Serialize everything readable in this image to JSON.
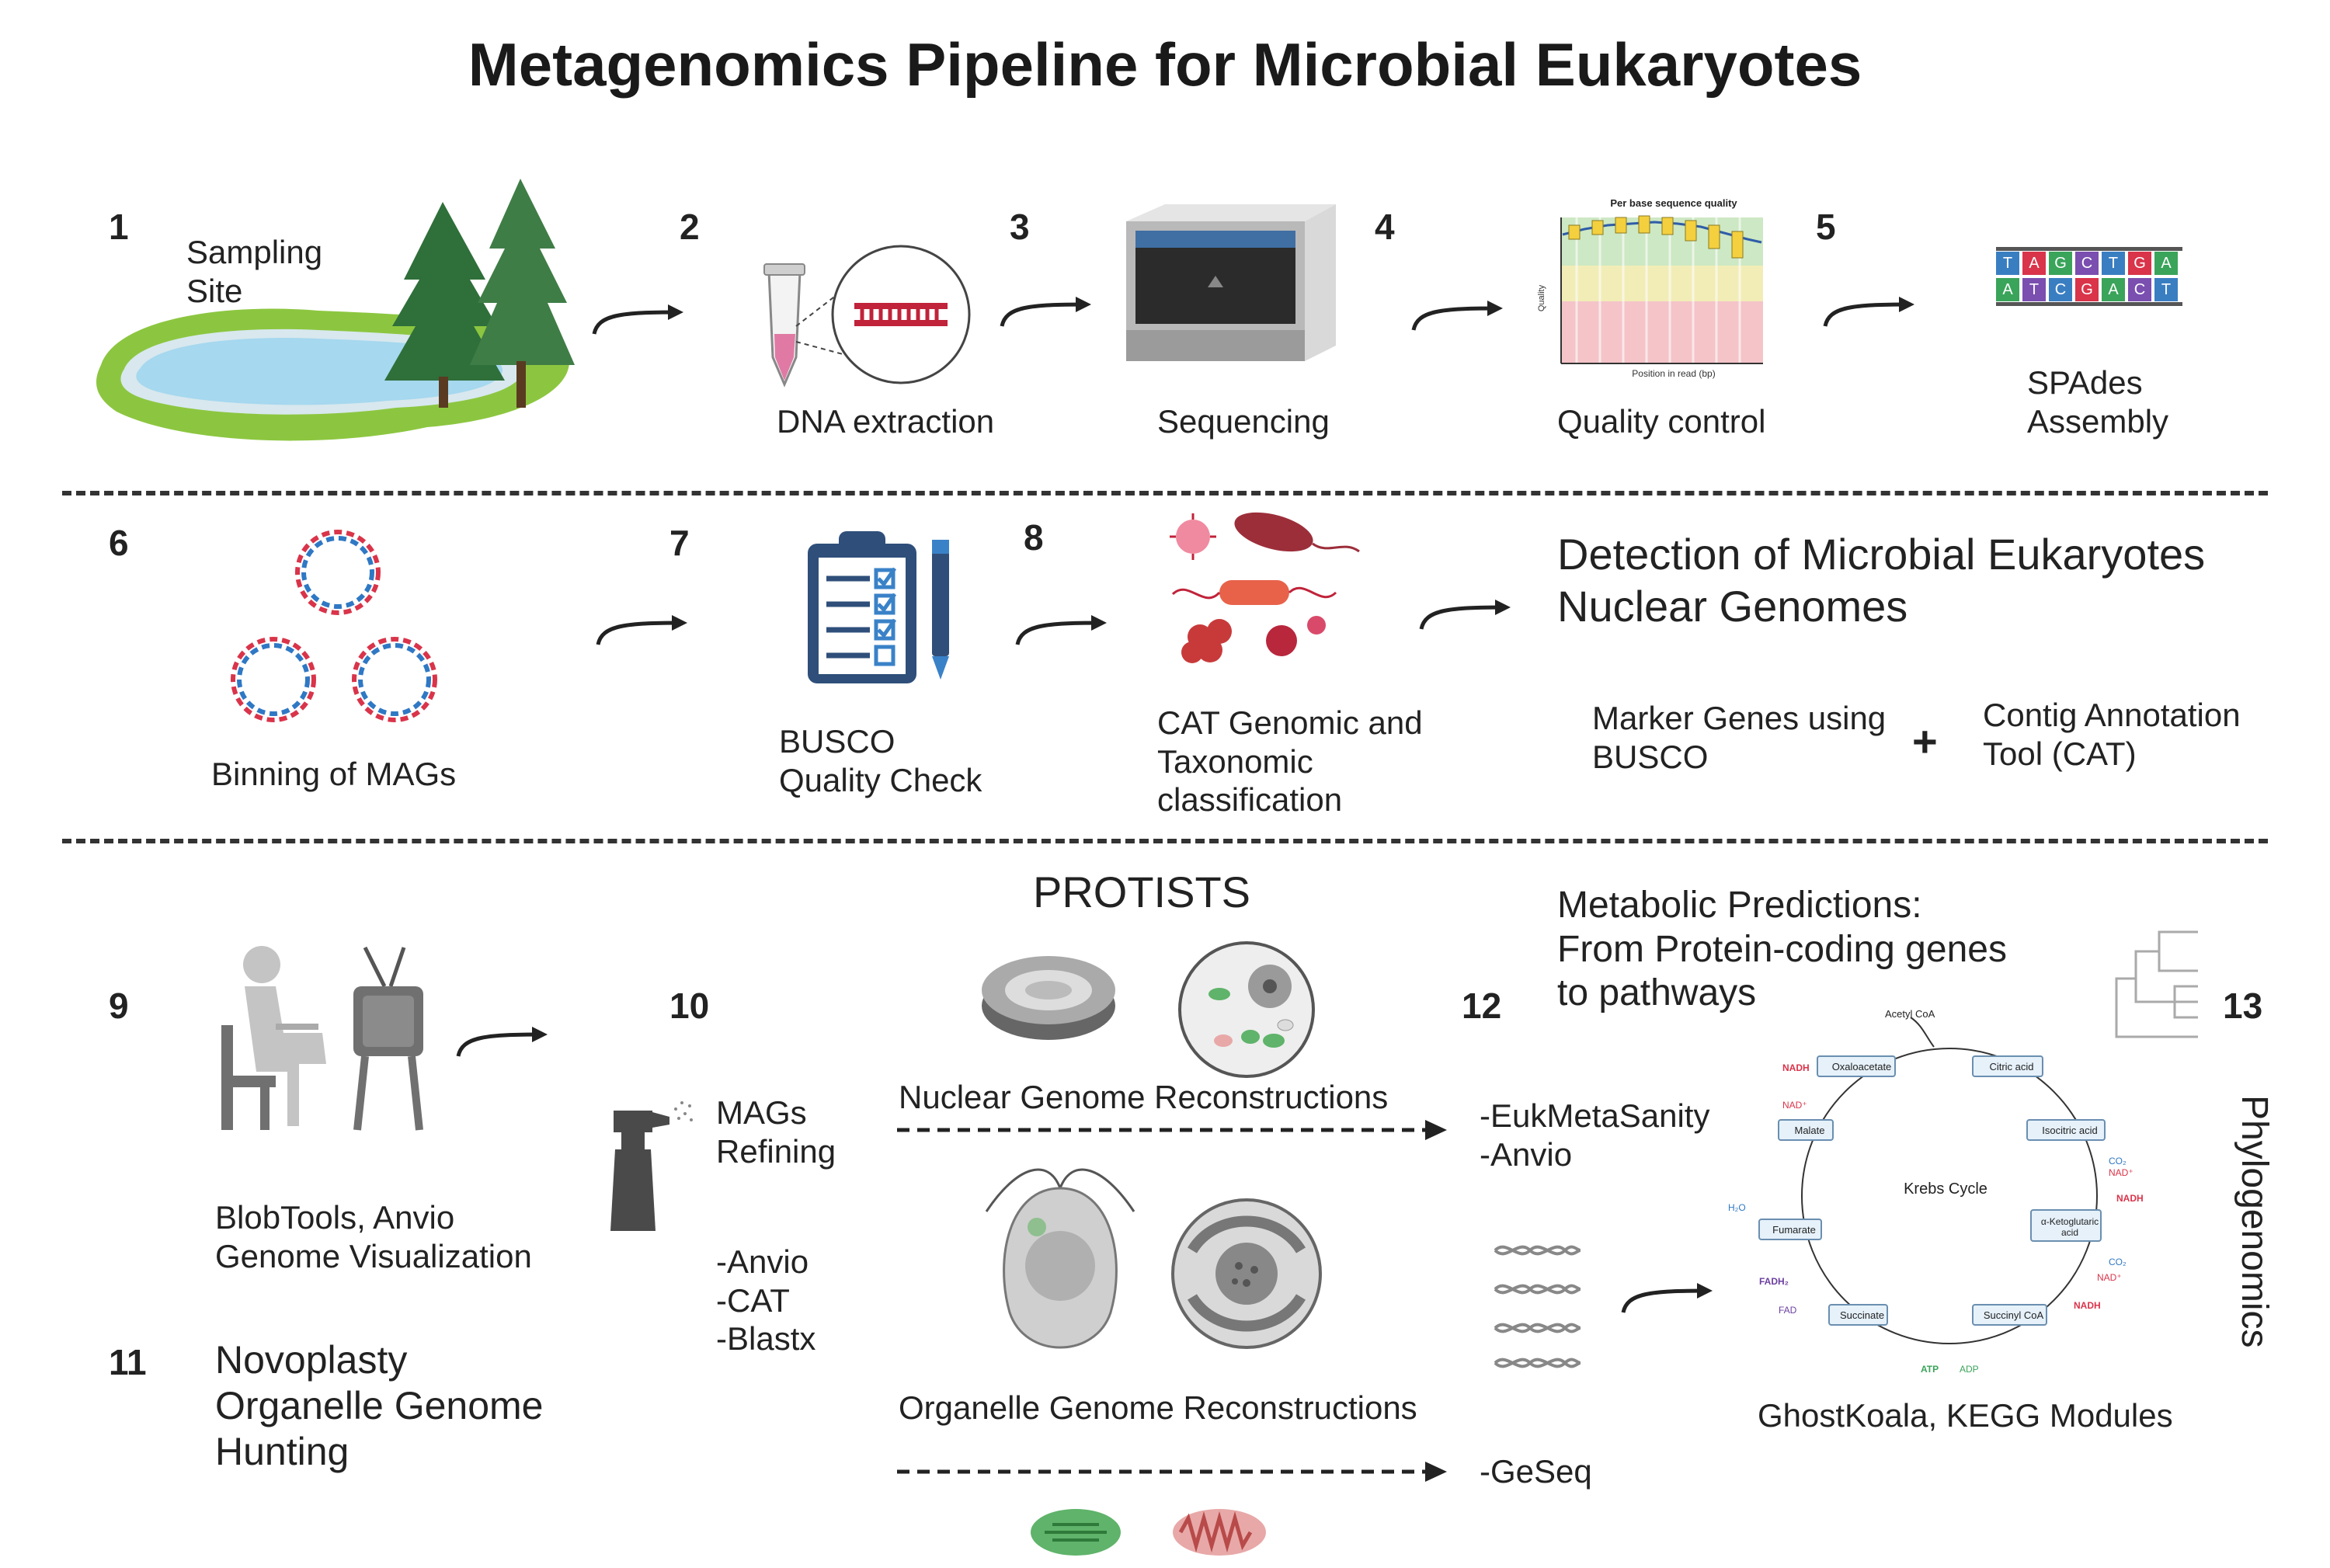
{
  "title": "Metagenomics Pipeline for Microbial Eukaryotes",
  "steps": {
    "s1": {
      "num": "1",
      "label": "Sampling\nSite"
    },
    "s2": {
      "num": "2",
      "label": "DNA extraction"
    },
    "s3": {
      "num": "3",
      "label": "Sequencing"
    },
    "s4": {
      "num": "4",
      "label": "Quality control"
    },
    "s5": {
      "num": "5",
      "label": "SPAdes\nAssembly"
    },
    "s6": {
      "num": "6",
      "label": "Binning of MAGs"
    },
    "s7": {
      "num": "7",
      "label": "BUSCO\nQuality Check"
    },
    "s8": {
      "num": "8",
      "label": "CAT Genomic and\nTaxonomic\nclassification"
    },
    "s9": {
      "num": "9",
      "label": "BlobTools, Anvio\nGenome Visualization"
    },
    "s10": {
      "num": "10",
      "label": "MAGs\nRefining",
      "tools": "-Anvio\n-CAT\n-Blastx"
    },
    "s11": {
      "num": "11",
      "label": "Novoplasty\nOrganelle Genome\nHunting"
    },
    "s12": {
      "num": "12"
    },
    "s13": {
      "num": "13",
      "label": "Phylogenomics"
    }
  },
  "qc_chart": {
    "title": "Per base sequence quality",
    "xlabel": "Position in read (bp)",
    "ylabel": "Quality"
  },
  "dna_letters": {
    "top": [
      "T",
      "A",
      "G",
      "C",
      "T",
      "G",
      "A"
    ],
    "bottom": [
      "A",
      "T",
      "C",
      "G",
      "A",
      "C",
      "T"
    ]
  },
  "detection": {
    "title": "Detection of Microbial Eukaryotes\nNuclear Genomes",
    "left": "Marker Genes using\nBUSCO",
    "plus": "+",
    "right": "Contig Annotation\nTool (CAT)"
  },
  "protists": {
    "title": "PROTISTS",
    "nuclear": "Nuclear Genome Reconstructions",
    "organelle": "Organelle Genome Reconstructions"
  },
  "nuclear_tools": "-EukMetaSanity\n-Anvio",
  "organelle_tools": "-GeSeq",
  "metabolic": {
    "title": "Metabolic Predictions:\nFrom Protein-coding genes\nto pathways",
    "caption": "GhostKoala, KEGG Modules"
  },
  "krebs": {
    "center": "Krebs Cycle",
    "acetyl": "Acetyl CoA",
    "nodes": [
      "Oxaloacetate",
      "Citric acid",
      "Isocitric acid",
      "α-Ketoglutaric acid",
      "Succinyl CoA",
      "Succinate",
      "Fumarate",
      "Malate"
    ],
    "cofactors": {
      "nadh": "NADH",
      "nad": "NAD⁺",
      "co2": "CO₂",
      "h2o": "H₂O",
      "fadh2": "FADH₂",
      "fad": "FAD",
      "atp": "ATP",
      "adp": "ADP"
    }
  },
  "colors": {
    "accent_red": "#d9344a",
    "accent_blue": "#2f78c4",
    "accent_green": "#3aa45a",
    "accent_purple": "#6b3fa0"
  }
}
